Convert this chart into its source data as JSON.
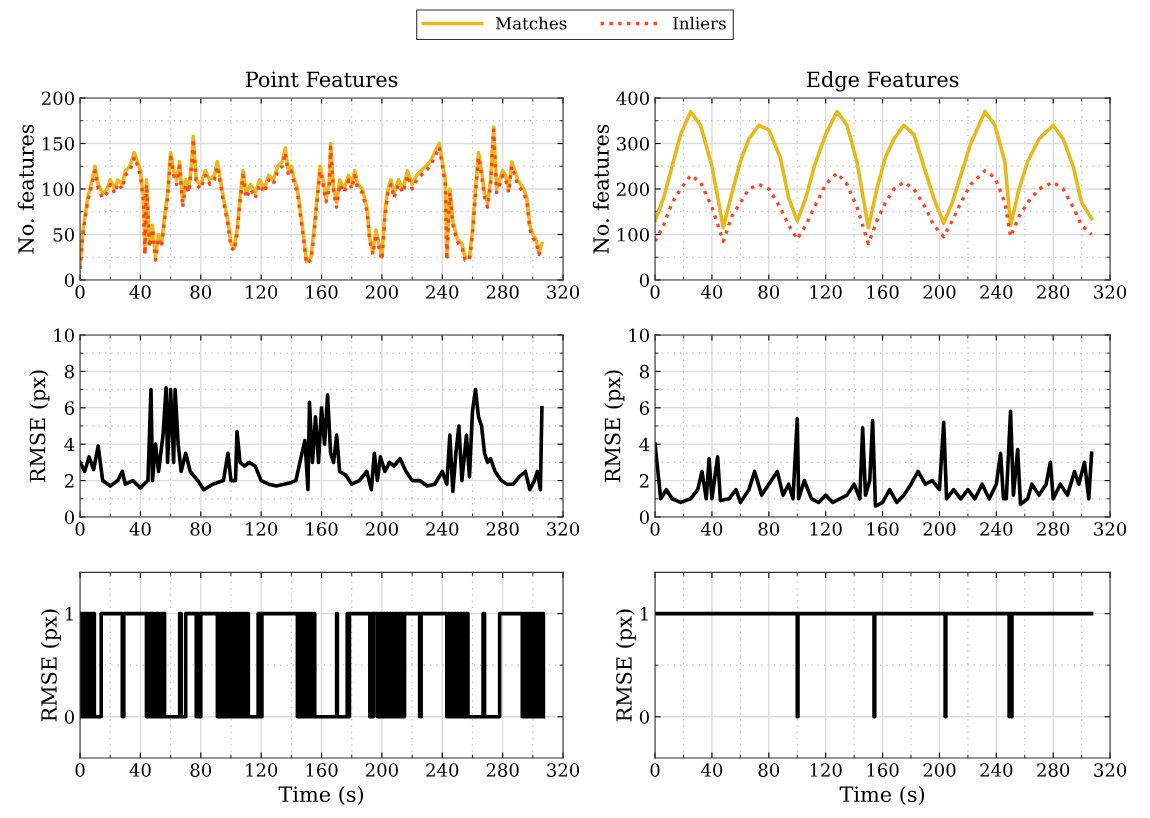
{
  "chart_data": [
    {
      "type": "line",
      "title": "Point Features",
      "ylabel": "No. features",
      "legend": "top",
      "grid": true,
      "xlim": [
        0,
        320
      ],
      "xticks": [
        0,
        40,
        80,
        120,
        160,
        200,
        240,
        280,
        320
      ],
      "ylim": [
        0,
        200
      ],
      "yticks": [
        0,
        50,
        100,
        150,
        200
      ],
      "x": [
        0,
        2,
        5,
        8,
        10,
        12,
        15,
        18,
        20,
        23,
        25,
        28,
        30,
        33,
        36,
        38,
        40,
        42,
        43,
        44,
        46,
        48,
        50,
        52,
        54,
        56,
        58,
        60,
        62,
        64,
        66,
        68,
        70,
        72,
        74,
        75,
        77,
        80,
        83,
        86,
        89,
        91,
        93,
        95,
        98,
        100,
        102,
        104,
        106,
        108,
        110,
        113,
        116,
        119,
        122,
        125,
        128,
        131,
        134,
        136,
        138,
        140,
        142,
        144,
        146,
        148,
        150,
        153,
        155,
        157,
        159,
        161,
        163,
        165,
        166,
        168,
        170,
        172,
        175,
        178,
        180,
        182,
        184,
        187,
        190,
        192,
        194,
        196,
        198,
        200,
        202,
        204,
        206,
        208,
        211,
        214,
        217,
        220,
        223,
        226,
        229,
        232,
        235,
        238,
        240,
        242,
        243,
        245,
        247,
        250,
        253,
        255,
        258,
        260,
        262,
        264,
        266,
        268,
        270,
        272,
        274,
        276,
        278,
        280,
        282,
        284,
        286,
        288,
        290,
        292,
        294,
        296,
        298,
        300,
        302,
        304,
        306
      ],
      "series": [
        {
          "name": "Matches",
          "color": "#e6b91e",
          "line_style": "solid",
          "values": [
            15,
            55,
            90,
            110,
            125,
            105,
            95,
            100,
            110,
            100,
            110,
            105,
            120,
            125,
            140,
            130,
            120,
            90,
            30,
            110,
            40,
            60,
            25,
            50,
            40,
            70,
            95,
            140,
            120,
            110,
            130,
            85,
            110,
            100,
            130,
            158,
            110,
            105,
            120,
            110,
            115,
            130,
            110,
            90,
            65,
            40,
            35,
            55,
            90,
            120,
            95,
            105,
            95,
            110,
            100,
            115,
            110,
            125,
            130,
            145,
            120,
            125,
            110,
            100,
            75,
            50,
            20,
            25,
            55,
            90,
            125,
            110,
            90,
            105,
            150,
            100,
            85,
            110,
            100,
            115,
            105,
            120,
            105,
            100,
            80,
            45,
            30,
            55,
            40,
            25,
            75,
            100,
            110,
            95,
            110,
            100,
            120,
            105,
            115,
            120,
            125,
            130,
            140,
            150,
            130,
            110,
            25,
            100,
            65,
            45,
            40,
            25,
            25,
            55,
            100,
            140,
            120,
            95,
            85,
            110,
            168,
            100,
            110,
            120,
            115,
            100,
            130,
            120,
            110,
            105,
            100,
            90,
            60,
            50,
            45,
            30,
            40
          ]
        },
        {
          "name": "Inliers",
          "color": "#ff4422",
          "line_style": "dotted",
          "values": [
            12,
            52,
            86,
            106,
            120,
            100,
            90,
            96,
            105,
            95,
            106,
            100,
            115,
            120,
            135,
            126,
            115,
            85,
            28,
            105,
            36,
            56,
            22,
            46,
            36,
            66,
            90,
            135,
            115,
            105,
            125,
            80,
            105,
            96,
            125,
            155,
            105,
            100,
            115,
            105,
            110,
            125,
            105,
            86,
            60,
            36,
            32,
            50,
            86,
            115,
            90,
            100,
            90,
            105,
            96,
            110,
            105,
            120,
            125,
            140,
            115,
            120,
            105,
            96,
            70,
            46,
            18,
            22,
            50,
            86,
            120,
            105,
            86,
            100,
            146,
            96,
            80,
            105,
            96,
            110,
            100,
            115,
            100,
            96,
            76,
            42,
            28,
            50,
            36,
            22,
            70,
            96,
            105,
            90,
            105,
            96,
            115,
            100,
            110,
            115,
            120,
            125,
            135,
            146,
            125,
            105,
            22,
            96,
            60,
            42,
            36,
            22,
            22,
            50,
            96,
            135,
            115,
            90,
            80,
            105,
            165,
            96,
            105,
            115,
            110,
            96,
            125,
            115,
            105,
            100,
            96,
            86,
            56,
            46,
            42,
            28,
            36
          ]
        }
      ]
    },
    {
      "type": "line",
      "title": "Edge Features",
      "ylabel": "No. features",
      "legend": "top",
      "grid": true,
      "xlim": [
        0,
        320
      ],
      "xticks": [
        0,
        40,
        80,
        120,
        160,
        200,
        240,
        280,
        320
      ],
      "ylim": [
        0,
        400
      ],
      "yticks": [
        0,
        100,
        200,
        300,
        400
      ],
      "x": [
        0,
        6,
        12,
        18,
        25,
        32,
        40,
        48,
        54,
        60,
        66,
        73,
        80,
        88,
        94,
        100,
        106,
        112,
        120,
        128,
        135,
        142,
        150,
        156,
        162,
        168,
        175,
        182,
        190,
        196,
        203,
        209,
        215,
        222,
        232,
        239,
        246,
        250,
        256,
        262,
        270,
        280,
        287,
        294,
        300,
        307
      ],
      "series": [
        {
          "name": "Matches",
          "color": "#e6b91e",
          "line_style": "solid",
          "values": [
            130,
            180,
            250,
            320,
            370,
            340,
            250,
            115,
            190,
            260,
            310,
            340,
            330,
            270,
            180,
            130,
            180,
            250,
            320,
            370,
            340,
            260,
            115,
            200,
            270,
            310,
            340,
            320,
            240,
            180,
            125,
            170,
            230,
            300,
            370,
            340,
            260,
            120,
            200,
            260,
            310,
            340,
            310,
            250,
            170,
            135
          ]
        },
        {
          "name": "Inliers",
          "color": "#ff4422",
          "line_style": "dotted",
          "values": [
            85,
            120,
            170,
            200,
            230,
            215,
            160,
            85,
            140,
            170,
            200,
            210,
            200,
            160,
            120,
            90,
            120,
            160,
            210,
            235,
            210,
            160,
            80,
            130,
            170,
            200,
            215,
            200,
            160,
            120,
            95,
            130,
            170,
            210,
            240,
            225,
            170,
            95,
            140,
            170,
            200,
            215,
            200,
            160,
            120,
            100
          ]
        }
      ]
    },
    {
      "type": "line",
      "ylabel": "RMSE (px)",
      "grid": true,
      "xlim": [
        0,
        320
      ],
      "xticks": [
        0,
        40,
        80,
        120,
        160,
        200,
        240,
        280,
        320
      ],
      "ylim": [
        0,
        10
      ],
      "yticks": [
        0,
        2,
        4,
        6,
        8,
        10
      ],
      "x": [
        0,
        3,
        6,
        9,
        12,
        15,
        20,
        25,
        28,
        30,
        35,
        40,
        45,
        47,
        48,
        50,
        52,
        55,
        57,
        58,
        60,
        62,
        63,
        65,
        67,
        70,
        73,
        78,
        82,
        88,
        95,
        98,
        100,
        103,
        104,
        106,
        109,
        112,
        116,
        120,
        125,
        130,
        135,
        140,
        143,
        147,
        149,
        151,
        152,
        154,
        156,
        158,
        160,
        162,
        164,
        166,
        168,
        170,
        172,
        176,
        180,
        185,
        190,
        193,
        195,
        197,
        199,
        202,
        205,
        208,
        212,
        216,
        220,
        225,
        230,
        235,
        240,
        243,
        245,
        247,
        249,
        251,
        253,
        256,
        258,
        260,
        262,
        264,
        266,
        268,
        270,
        272,
        275,
        279,
        283,
        287,
        291,
        295,
        298,
        301,
        303,
        305,
        306
      ],
      "series": [
        {
          "color": "#000000",
          "line_style": "solid",
          "values": [
            3,
            2.5,
            3.3,
            2.6,
            3.9,
            2,
            1.7,
            2,
            2.5,
            1.8,
            2,
            1.6,
            2,
            7,
            2,
            4,
            2.5,
            4.5,
            7.1,
            3,
            7,
            3,
            7,
            4,
            2.5,
            3.5,
            2.5,
            2,
            1.5,
            1.8,
            2,
            3.5,
            2,
            2,
            4.7,
            3,
            2.8,
            3,
            2.8,
            2,
            1.8,
            1.7,
            1.8,
            1.9,
            2,
            3.5,
            4.2,
            1.5,
            6.3,
            3,
            5.5,
            3,
            6,
            4,
            6.7,
            3.5,
            3,
            4.5,
            2.5,
            2.3,
            1.8,
            2,
            2.5,
            1.5,
            3.5,
            2,
            3.3,
            2.5,
            3,
            2.8,
            3.2,
            2.5,
            2,
            2,
            1.7,
            1.8,
            2.5,
            1.8,
            4.5,
            1.4,
            3.5,
            5,
            2,
            4.5,
            2.2,
            5.8,
            7,
            5.5,
            5,
            3.5,
            3,
            3.2,
            2.5,
            2,
            1.8,
            1.8,
            2.2,
            2.5,
            1.5,
            2,
            2.5,
            1.5,
            6
          ]
        }
      ]
    },
    {
      "type": "line",
      "ylabel": "RMSE (px)",
      "grid": true,
      "xlim": [
        0,
        320
      ],
      "xticks": [
        0,
        40,
        80,
        120,
        160,
        200,
        240,
        280,
        320
      ],
      "ylim": [
        0,
        10
      ],
      "yticks": [
        0,
        2,
        4,
        6,
        8,
        10
      ],
      "x": [
        0,
        2,
        4,
        8,
        12,
        18,
        25,
        30,
        33,
        36,
        38,
        40,
        44,
        46,
        52,
        57,
        60,
        66,
        70,
        75,
        80,
        86,
        90,
        94,
        97,
        100,
        101,
        105,
        110,
        115,
        120,
        125,
        130,
        135,
        140,
        144,
        146,
        148,
        151,
        153,
        155,
        160,
        165,
        170,
        175,
        180,
        185,
        190,
        195,
        200,
        203,
        205,
        210,
        215,
        220,
        225,
        230,
        235,
        240,
        243,
        245,
        247,
        250,
        252,
        255,
        257,
        262,
        265,
        270,
        275,
        278,
        280,
        285,
        290,
        295,
        298,
        302,
        305,
        307
      ],
      "series": [
        {
          "color": "#000000",
          "line_style": "solid",
          "values": [
            4,
            2.5,
            1,
            1.5,
            1,
            0.8,
            1,
            1.5,
            2.5,
            1,
            3.2,
            1,
            3.3,
            0.9,
            1,
            1.5,
            0.8,
            1.5,
            2.5,
            1.2,
            1.8,
            2.5,
            1.2,
            1.8,
            1,
            5.4,
            1,
            2,
            1,
            0.8,
            1.2,
            0.8,
            1,
            1.2,
            1.8,
            1,
            4.9,
            1.2,
            2,
            5.3,
            0.6,
            0.8,
            1.5,
            0.8,
            1.2,
            1.8,
            2.5,
            1.8,
            2,
            1.5,
            5.2,
            1,
            1.5,
            1,
            1.5,
            1,
            1.8,
            1,
            1.8,
            3.5,
            1,
            1,
            5.8,
            1.2,
            3.7,
            0.7,
            1,
            1.8,
            1.2,
            1.8,
            3,
            1,
            1.8,
            1.2,
            2.5,
            1.8,
            3,
            1,
            3.5
          ]
        }
      ]
    },
    {
      "type": "step",
      "xlabel": "Time (s)",
      "ylabel": "RMSE (px)",
      "grid": true,
      "xlim": [
        0,
        320
      ],
      "xticks": [
        0,
        40,
        80,
        120,
        160,
        200,
        240,
        280,
        320
      ],
      "ylim": [
        -0.4,
        1.4
      ],
      "yticks": [
        0,
        1
      ],
      "x": [
        0,
        0.5,
        1,
        1.5,
        2,
        2.5,
        3,
        3.5,
        4,
        5,
        5.5,
        6,
        7,
        7.5,
        8,
        8.5,
        9,
        9.5,
        14,
        28,
        29,
        44,
        44.5,
        45,
        46,
        46.5,
        47,
        48,
        48.5,
        49,
        50,
        50.5,
        51,
        52,
        53,
        53.5,
        54,
        55,
        55.5,
        56,
        66,
        67,
        70,
        77,
        77.5,
        78,
        78.5,
        79,
        80,
        91,
        91.5,
        92,
        93,
        93.5,
        94,
        95,
        96,
        97,
        98,
        98.5,
        99,
        100,
        101,
        102,
        103,
        104,
        105,
        106,
        107,
        108,
        109,
        110,
        111,
        111.5,
        118,
        119,
        119.5,
        120,
        120.5,
        144,
        145,
        145.5,
        146,
        147,
        148,
        148.5,
        149,
        150,
        151,
        152,
        153,
        154,
        155,
        155.5,
        170,
        170.5,
        177,
        178,
        178.5,
        192,
        193,
        194,
        194.5,
        197,
        198,
        198.5,
        199,
        200,
        201,
        202,
        203,
        204,
        205,
        206,
        207,
        208,
        209,
        210,
        211,
        212,
        213,
        214,
        215,
        225,
        226,
        243,
        244,
        245,
        246,
        247,
        248,
        249,
        250,
        251,
        252,
        253,
        254,
        255,
        256,
        257,
        267,
        268,
        278,
        293,
        294,
        295,
        296,
        297,
        298,
        299,
        300,
        301,
        302,
        303,
        304,
        305,
        306,
        307
      ],
      "series": [
        {
          "color": "#000000",
          "line_style": "solid",
          "values": [
            1,
            0,
            1,
            0,
            1,
            0,
            1,
            0,
            1,
            0,
            1,
            0,
            1,
            0,
            1,
            0,
            1,
            0,
            1,
            0,
            1,
            0,
            1,
            0,
            1,
            0,
            1,
            0,
            1,
            0,
            1,
            0,
            1,
            0,
            1,
            0,
            1,
            0,
            1,
            0,
            1,
            0,
            1,
            0,
            1,
            0,
            1,
            0,
            1,
            0,
            1,
            0,
            1,
            0,
            1,
            0,
            1,
            0,
            1,
            0,
            1,
            0,
            1,
            0,
            1,
            0,
            1,
            0,
            1,
            0,
            1,
            0,
            1,
            0,
            1,
            0,
            1,
            0,
            1,
            0,
            1,
            0,
            1,
            0,
            1,
            0,
            1,
            0,
            1,
            0,
            1,
            0,
            1,
            0,
            1,
            0,
            1,
            0,
            1,
            0,
            1,
            0,
            1,
            0,
            1,
            0,
            1,
            0,
            1,
            0,
            1,
            0,
            1,
            0,
            1,
            0,
            1,
            0,
            1,
            0,
            1,
            0,
            1,
            0,
            1,
            0,
            1,
            0,
            1,
            0,
            1,
            0,
            1,
            0,
            1,
            0,
            1,
            0,
            1,
            0,
            1,
            0,
            1,
            0,
            1,
            0,
            1,
            0,
            1,
            0,
            1,
            0,
            1,
            0,
            1,
            0,
            1,
            0
          ]
        }
      ]
    },
    {
      "type": "step",
      "xlabel": "Time (s)",
      "ylabel": "RMSE (px)",
      "grid": true,
      "xlim": [
        0,
        320
      ],
      "xticks": [
        0,
        40,
        80,
        120,
        160,
        200,
        240,
        280,
        320
      ],
      "ylim": [
        -0.4,
        1.4
      ],
      "yticks": [
        0,
        1
      ],
      "x": [
        0,
        100,
        100.5,
        154,
        154.5,
        204,
        204.5,
        249,
        249.5,
        250.5,
        251,
        307
      ],
      "series": [
        {
          "color": "#000000",
          "line_style": "solid",
          "values": [
            1,
            0,
            1,
            0,
            1,
            0,
            1,
            0,
            1,
            0,
            1,
            1
          ]
        }
      ]
    }
  ]
}
